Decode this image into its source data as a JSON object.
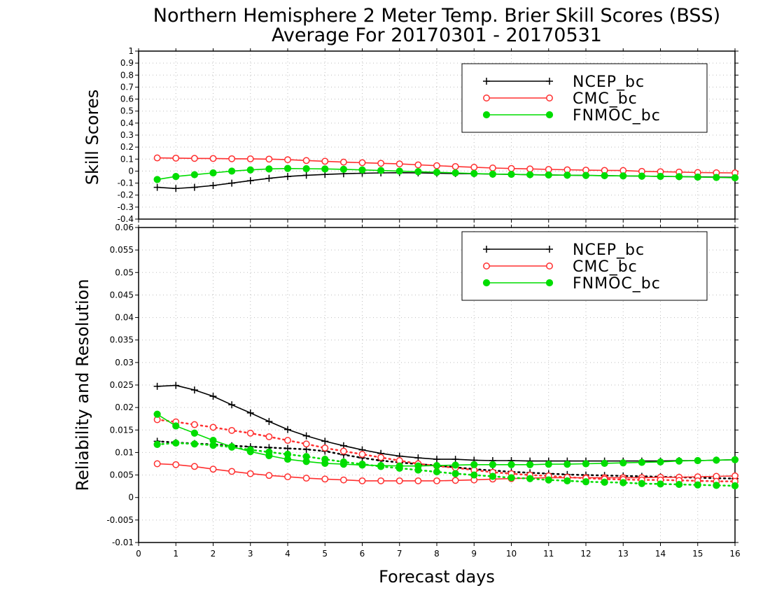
{
  "title_line1": "Northern Hemisphere 2 Meter Temp. Brier Skill Scores (BSS)",
  "title_line2": "Average For 20170301 - 20170531",
  "xlabel": "Forecast days",
  "colors": {
    "NCEP_bc": "#000000",
    "CMC_bc": "#ff3030",
    "FNMOC_bc": "#00dd00"
  },
  "chart_data": [
    {
      "type": "line",
      "ylabel": "Skill Scores",
      "xlim": [
        0,
        16
      ],
      "ylim": [
        -0.4,
        1
      ],
      "grid": true,
      "legend_placement": "top-right",
      "xticks": [
        "0",
        "1",
        "2",
        "3",
        "4",
        "5",
        "6",
        "7",
        "8",
        "9",
        "10",
        "11",
        "12",
        "13",
        "14",
        "15",
        "16"
      ],
      "yticks": [
        "-0.4",
        "-0.3",
        "-0.2",
        "-0.1",
        "0",
        "0.1",
        "0.2",
        "0.3",
        "0.4",
        "0.5",
        "0.6",
        "0.7",
        "0.8",
        "0.9",
        "1"
      ],
      "x": [
        0.5,
        1,
        1.5,
        2,
        2.5,
        3,
        3.5,
        4,
        4.5,
        5,
        5.5,
        6,
        6.5,
        7,
        7.5,
        8,
        8.5,
        9,
        9.5,
        10,
        10.5,
        11,
        11.5,
        12,
        12.5,
        13,
        13.5,
        14,
        14.5,
        15,
        15.5,
        16
      ],
      "series": [
        {
          "name": "NCEP_bc",
          "marker": "plus",
          "values": [
            -0.135,
            -0.145,
            -0.135,
            -0.12,
            -0.1,
            -0.08,
            -0.06,
            -0.045,
            -0.035,
            -0.028,
            -0.022,
            -0.018,
            -0.015,
            -0.013,
            -0.015,
            -0.018,
            -0.02,
            -0.022,
            -0.025,
            -0.027,
            -0.03,
            -0.032,
            -0.034,
            -0.036,
            -0.038,
            -0.04,
            -0.042,
            -0.044,
            -0.046,
            -0.048,
            -0.05,
            -0.052
          ]
        },
        {
          "name": "CMC_bc",
          "marker": "open-circle",
          "values": [
            0.11,
            0.108,
            0.106,
            0.105,
            0.103,
            0.102,
            0.1,
            0.095,
            0.088,
            0.082,
            0.075,
            0.07,
            0.065,
            0.06,
            0.052,
            0.045,
            0.038,
            0.032,
            0.026,
            0.022,
            0.018,
            0.014,
            0.011,
            0.008,
            0.006,
            0.005,
            -0.002,
            -0.005,
            -0.008,
            -0.012,
            -0.014,
            -0.015
          ]
        },
        {
          "name": "FNMOC_bc",
          "marker": "filled-circle",
          "values": [
            -0.07,
            -0.045,
            -0.03,
            -0.015,
            0,
            0.01,
            0.018,
            0.022,
            0.02,
            0.018,
            0.015,
            0.01,
            0.005,
            0,
            -0.005,
            -0.01,
            -0.015,
            -0.02,
            -0.025,
            -0.027,
            -0.03,
            -0.032,
            -0.034,
            -0.036,
            -0.038,
            -0.04,
            -0.042,
            -0.044,
            -0.046,
            -0.05,
            -0.053,
            -0.056
          ]
        }
      ]
    },
    {
      "type": "line",
      "ylabel": "Reliability and Resolution",
      "xlim": [
        0,
        16
      ],
      "ylim": [
        -0.01,
        0.06
      ],
      "grid": true,
      "legend_placement": "top-right",
      "xticks": [
        "0",
        "1",
        "2",
        "3",
        "4",
        "5",
        "6",
        "7",
        "8",
        "9",
        "10",
        "11",
        "12",
        "13",
        "14",
        "15",
        "16"
      ],
      "yticks": [
        "-0.01",
        "-0.005",
        "0",
        "0.005",
        "0.01",
        "0.015",
        "0.02",
        "0.025",
        "0.03",
        "0.035",
        "0.04",
        "0.045",
        "0.05",
        "0.055",
        "0.06"
      ],
      "x": [
        0.5,
        1,
        1.5,
        2,
        2.5,
        3,
        3.5,
        4,
        4.5,
        5,
        5.5,
        6,
        6.5,
        7,
        7.5,
        8,
        8.5,
        9,
        9.5,
        10,
        10.5,
        11,
        11.5,
        12,
        12.5,
        13,
        13.5,
        14,
        14.5,
        15,
        15.5,
        16
      ],
      "series": [
        {
          "name": "NCEP_bc",
          "marker": "plus",
          "style": "solid",
          "values": [
            0.0247,
            0.0249,
            0.0239,
            0.0225,
            0.0206,
            0.0188,
            0.0169,
            0.0151,
            0.0137,
            0.0125,
            0.0115,
            0.0106,
            0.0098,
            0.0092,
            0.0088,
            0.0085,
            0.0085,
            0.0083,
            0.0082,
            0.0082,
            0.0081,
            0.0081,
            0.0081,
            0.0081,
            0.0081,
            0.0081,
            0.0081,
            0.0081,
            0.0082,
            0.0082,
            0.0083,
            0.0084
          ]
        },
        {
          "name": "NCEP_bc",
          "marker": "plus",
          "style": "dotted",
          "values": [
            0.0125,
            0.0122,
            0.012,
            0.0118,
            0.0115,
            0.0113,
            0.0111,
            0.0109,
            0.0107,
            0.0103,
            0.0095,
            0.0088,
            0.0082,
            0.0078,
            0.0074,
            0.0071,
            0.0067,
            0.0063,
            0.006,
            0.0057,
            0.0055,
            0.0053,
            0.0051,
            0.005,
            0.0049,
            0.0048,
            0.0047,
            0.0046,
            0.0045,
            0.0044,
            0.0043,
            0.0042
          ]
        },
        {
          "name": "CMC_bc",
          "marker": "open-circle",
          "style": "solid",
          "values": [
            0.0075,
            0.0073,
            0.0069,
            0.0063,
            0.0058,
            0.0053,
            0.0049,
            0.0046,
            0.0043,
            0.0041,
            0.0039,
            0.0037,
            0.0037,
            0.0037,
            0.0037,
            0.0037,
            0.0038,
            0.0039,
            0.0041,
            0.0042,
            0.0043,
            0.0044,
            0.0044,
            0.0044,
            0.0044,
            0.0044,
            0.0044,
            0.0045,
            0.0045,
            0.0046,
            0.0047,
            0.0048
          ]
        },
        {
          "name": "CMC_bc",
          "marker": "open-circle",
          "style": "dotted",
          "values": [
            0.0173,
            0.0168,
            0.0162,
            0.0156,
            0.0149,
            0.0143,
            0.0135,
            0.0127,
            0.0119,
            0.011,
            0.0103,
            0.0096,
            0.0089,
            0.0082,
            0.0075,
            0.007,
            0.0066,
            0.0061,
            0.0056,
            0.0053,
            0.005,
            0.0048,
            0.0045,
            0.0043,
            0.0041,
            0.004,
            0.0039,
            0.0039,
            0.0038,
            0.0037,
            0.0036,
            0.0036
          ]
        },
        {
          "name": "FNMOC_bc",
          "marker": "filled-circle",
          "style": "solid",
          "values": [
            0.0185,
            0.0159,
            0.0143,
            0.0127,
            0.0113,
            0.0102,
            0.0093,
            0.0085,
            0.008,
            0.0076,
            0.0074,
            0.0072,
            0.0071,
            0.007,
            0.007,
            0.0071,
            0.0072,
            0.0073,
            0.0073,
            0.0073,
            0.0073,
            0.0074,
            0.0074,
            0.0075,
            0.0076,
            0.0077,
            0.0078,
            0.0079,
            0.0081,
            0.0082,
            0.0083,
            0.0084
          ]
        },
        {
          "name": "FNMOC_bc",
          "marker": "filled-circle",
          "style": "dotted",
          "values": [
            0.0118,
            0.0121,
            0.0119,
            0.0116,
            0.0112,
            0.0106,
            0.0101,
            0.0096,
            0.0091,
            0.0085,
            0.0079,
            0.0074,
            0.0069,
            0.0065,
            0.0061,
            0.0057,
            0.0053,
            0.005,
            0.0047,
            0.0044,
            0.0042,
            0.0039,
            0.0037,
            0.0035,
            0.0034,
            0.0033,
            0.0031,
            0.003,
            0.0029,
            0.0028,
            0.0027,
            0.0026
          ]
        }
      ],
      "legend": [
        "NCEP_bc",
        "CMC_bc",
        "FNMOC_bc"
      ]
    }
  ]
}
